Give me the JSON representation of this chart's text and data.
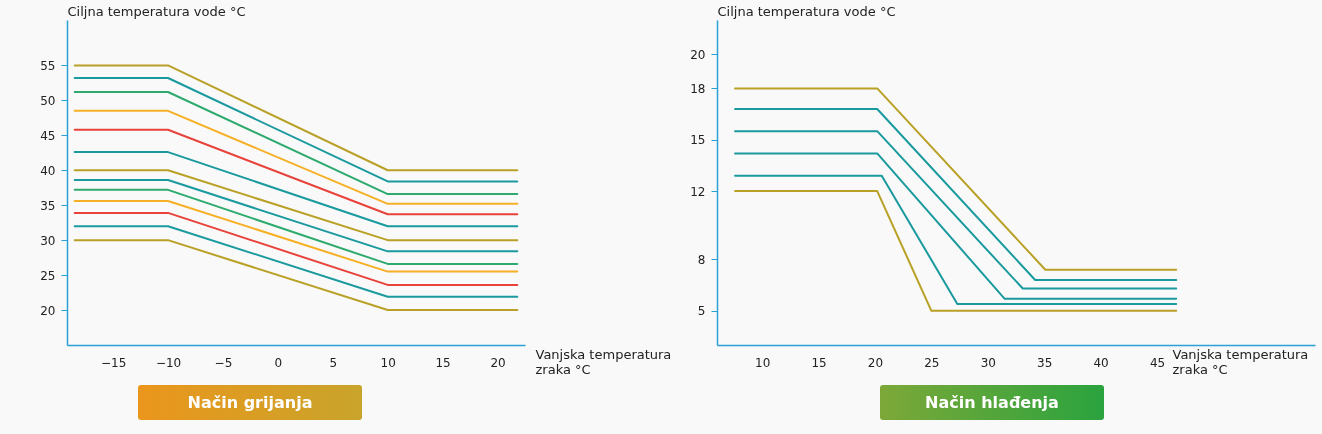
{
  "chart_data": [
    {
      "type": "line",
      "title": "Način grijanja",
      "xlabel": "Vanjska temperatura zraka °C",
      "ylabel": "Ciljna temperatura vode °C",
      "xlim": [
        -19.2,
        22.5
      ],
      "ylim": [
        15,
        61.5
      ],
      "xticks": [
        -15,
        -10,
        -5,
        0,
        5,
        10,
        15,
        20
      ],
      "yticks": [
        20,
        25,
        30,
        35,
        40,
        45,
        50,
        55
      ],
      "grid": false,
      "series": [
        {
          "color": "#b9a026",
          "x": [
            -18.5,
            -10,
            10,
            21.8
          ],
          "values": [
            55,
            55,
            40,
            40
          ]
        },
        {
          "color": "#1a9a9e",
          "x": [
            -18.5,
            -10,
            10,
            21.8
          ],
          "values": [
            53.2,
            53.2,
            38.4,
            38.4
          ]
        },
        {
          "color": "#2eaa6e",
          "x": [
            -18.5,
            -10,
            10,
            21.8
          ],
          "values": [
            51.2,
            51.2,
            36.6,
            36.6
          ]
        },
        {
          "color": "#f5b025",
          "x": [
            -18.5,
            -10,
            10,
            21.8
          ],
          "values": [
            48.5,
            48.5,
            35.2,
            35.2
          ]
        },
        {
          "color": "#e8433a",
          "x": [
            -18.5,
            -10,
            10,
            21.8
          ],
          "values": [
            45.8,
            45.8,
            33.7,
            33.7
          ]
        },
        {
          "color": "#1a9a9e",
          "x": [
            -18.5,
            -10,
            10,
            21.8
          ],
          "values": [
            42.6,
            42.6,
            32,
            32
          ]
        },
        {
          "color": "#b9a026",
          "x": [
            -18.5,
            -10,
            10,
            21.8
          ],
          "values": [
            40,
            40,
            30,
            30
          ]
        },
        {
          "color": "#1a9a9e",
          "x": [
            -18.5,
            -10,
            10,
            21.8
          ],
          "values": [
            38.6,
            38.6,
            28.4,
            28.4
          ]
        },
        {
          "color": "#2eaa6e",
          "x": [
            -18.5,
            -10,
            10,
            21.8
          ],
          "values": [
            37.2,
            37.2,
            26.6,
            26.6
          ]
        },
        {
          "color": "#f5b025",
          "x": [
            -18.5,
            -10,
            10,
            21.8
          ],
          "values": [
            35.6,
            35.6,
            25.5,
            25.5
          ]
        },
        {
          "color": "#e8433a",
          "x": [
            -18.5,
            -10,
            10,
            21.8
          ],
          "values": [
            33.9,
            33.9,
            23.6,
            23.6
          ]
        },
        {
          "color": "#1a9a9e",
          "x": [
            -18.5,
            -10,
            10,
            21.8
          ],
          "values": [
            32,
            32,
            21.9,
            21.9
          ]
        },
        {
          "color": "#b9a026",
          "x": [
            -18.5,
            -10,
            10,
            21.8
          ],
          "values": [
            30,
            30,
            20,
            20
          ]
        }
      ]
    },
    {
      "type": "line",
      "title": "Način hlađenja",
      "xlabel": "Vanjska temperatura zraka °C",
      "ylabel": "Ciljna temperatura vode °C",
      "xlim": [
        6,
        59
      ],
      "ylim": [
        3,
        22
      ],
      "xticks": [
        10,
        15,
        20,
        25,
        30,
        35,
        40,
        45
      ],
      "yticks": [
        5,
        8,
        12,
        15,
        18,
        20
      ],
      "grid": false,
      "series": [
        {
          "color": "#b9a026",
          "x": [
            7.6,
            20.2,
            35.1,
            46.7
          ],
          "values": [
            18,
            18,
            7.4,
            7.4
          ]
        },
        {
          "color": "#1a9a9e",
          "x": [
            7.6,
            20.2,
            34.2,
            46.7
          ],
          "values": [
            16.8,
            16.8,
            6.8,
            6.8
          ]
        },
        {
          "color": "#1a9a9e",
          "x": [
            7.6,
            20.2,
            33.1,
            46.7
          ],
          "values": [
            15.5,
            15.5,
            6.3,
            6.3
          ]
        },
        {
          "color": "#1a9a9e",
          "x": [
            7.6,
            20.2,
            31.5,
            46.7
          ],
          "values": [
            14.2,
            14.2,
            5.7,
            5.7
          ]
        },
        {
          "color": "#1a9a9e",
          "x": [
            7.6,
            20.6,
            27.3,
            46.7
          ],
          "values": [
            12.9,
            12.9,
            5.4,
            5.4
          ]
        },
        {
          "color": "#b9a026",
          "x": [
            7.6,
            20.2,
            25,
            46.7
          ],
          "values": [
            12,
            12,
            5,
            5
          ]
        }
      ]
    }
  ]
}
